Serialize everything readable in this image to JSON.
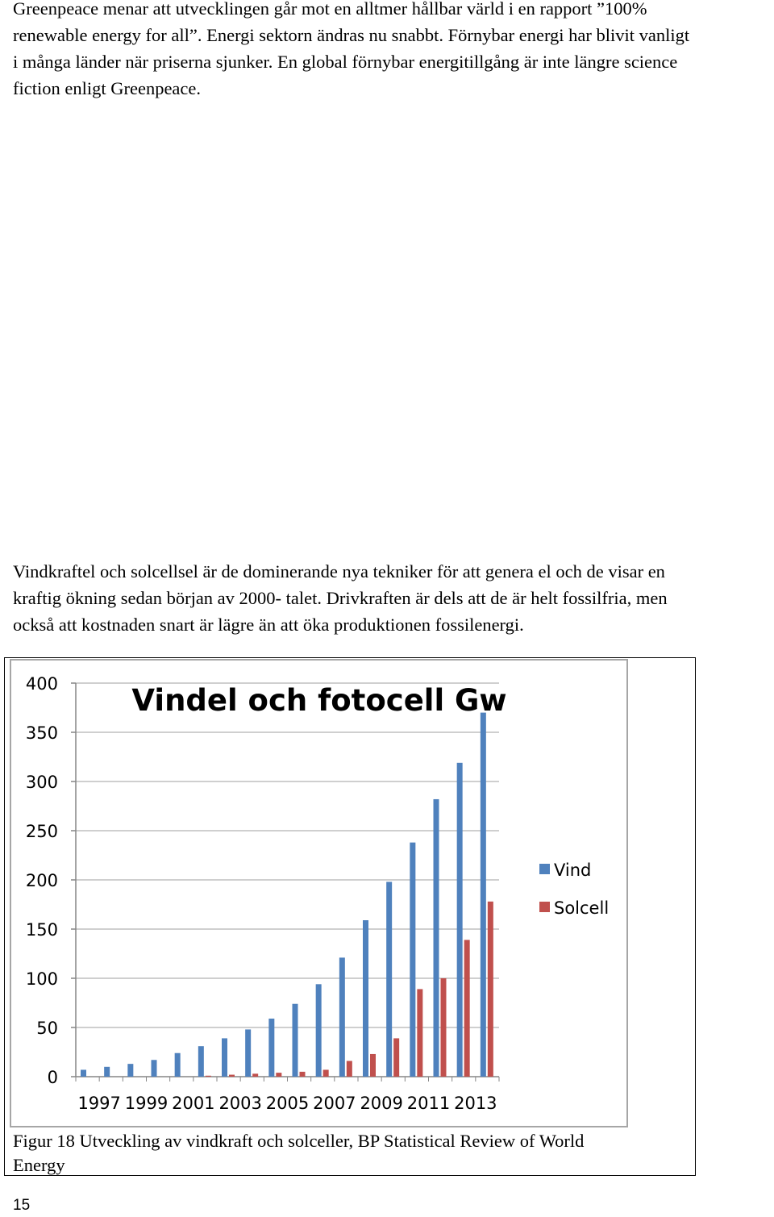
{
  "document": {
    "paragraph1_lines": [
      "Greenpeace menar att utvecklingen går mot en alltmer hållbar värld i en rapport ”100%",
      "renewable energy for all”. Energi sektorn ändras nu snabbt. Förnybar energi har blivit vanligt",
      "i många länder när priserna sjunker. En global förnybar energitillgång är inte längre science",
      "fiction enligt Greenpeace."
    ],
    "paragraph2_lines": [
      "Vindkraftel och solcellsel är de dominerande nya tekniker för att genera el och de visar en",
      "kraftig ökning sedan början av 2000- talet. Drivkraften är dels att de är helt fossilfria, men",
      "också att kostnaden snart är lägre än att öka produktionen fossilenergi."
    ],
    "caption_lines": [
      "Figur 18 Utveckling av vindkraft och solceller, BP Statistical Review of World",
      "Energy"
    ],
    "page_number": "15"
  },
  "chart_data": {
    "type": "bar",
    "title": "Vindel och fotocell Gw",
    "xlabel": "",
    "ylabel": "",
    "ylim": [
      0,
      400
    ],
    "yticks": [
      0,
      50,
      100,
      150,
      200,
      250,
      300,
      350,
      400
    ],
    "categories": [
      "1997",
      "1998",
      "1999",
      "2000",
      "2001",
      "2002",
      "2003",
      "2004",
      "2005",
      "2006",
      "2007",
      "2008",
      "2009",
      "2010",
      "2011",
      "2012",
      "2013",
      "2014"
    ],
    "category_tick_labels": [
      "1997",
      "1999",
      "2001",
      "2003",
      "2005",
      "2007",
      "2009",
      "2011",
      "2013"
    ],
    "series": [
      {
        "name": "Vind",
        "color": "#4f81bd",
        "values": [
          7,
          10,
          13,
          17,
          24,
          31,
          39,
          48,
          59,
          74,
          94,
          121,
          159,
          198,
          238,
          282,
          319,
          370
        ]
      },
      {
        "name": "Solcell",
        "color": "#c0504d",
        "values": [
          0,
          0,
          0,
          0,
          0,
          1,
          2,
          3,
          4,
          5,
          7,
          16,
          23,
          39,
          89,
          100,
          139,
          178
        ]
      }
    ],
    "grid": true,
    "legend_position": "right"
  }
}
